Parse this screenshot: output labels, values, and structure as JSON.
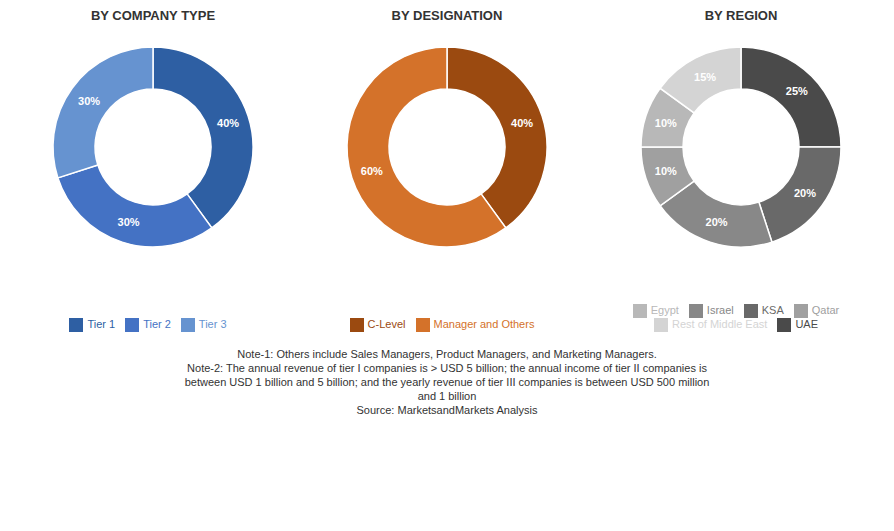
{
  "chart_data": [
    {
      "type": "pie",
      "title": "BY COMPANY TYPE",
      "categories": [
        "Tier 1",
        "Tier 2",
        "Tier 3"
      ],
      "values": [
        40,
        30,
        30
      ],
      "value_labels": [
        "40%",
        "30%",
        "30%"
      ],
      "colors": [
        "#2E5FA3",
        "#4472C4",
        "#6693D0"
      ],
      "data_labels": true,
      "legend": "bottom"
    },
    {
      "type": "pie",
      "title": "BY DESIGNATION",
      "categories": [
        "C-Level",
        "Manager and Others"
      ],
      "values": [
        40,
        60
      ],
      "value_labels": [
        "40%",
        "60%"
      ],
      "colors": [
        "#9B4A10",
        "#D4722A"
      ],
      "data_labels": true,
      "legend": "bottom"
    },
    {
      "type": "pie",
      "title": "BY REGION",
      "categories": [
        "UAE",
        "KSA",
        "Israel",
        "Qatar",
        "Egypt",
        "Rest of Middle East"
      ],
      "values": [
        25,
        20,
        20,
        10,
        10,
        15
      ],
      "value_labels": [
        "25%",
        "20%",
        "20%",
        "10%",
        "10%",
        "15%"
      ],
      "colors": [
        "#4A4A4A",
        "#696969",
        "#888888",
        "#A0A0A0",
        "#B8B8B8",
        "#D4D4D4"
      ],
      "data_labels": true,
      "legend": "bottom"
    }
  ],
  "annotations": [
    "Note-1: Others include Sales Managers, Product Managers, and Marketing Managers.",
    "Note-2: The annual revenue of tier I companies is > USD 5 billion; the annual income of tier II companies is",
    "between USD 1 billion and 5 billion; and the yearly revenue of tier III companies is between USD 500 million",
    "and 1 billion",
    "Source: MarketsandMarkets Analysis"
  ]
}
